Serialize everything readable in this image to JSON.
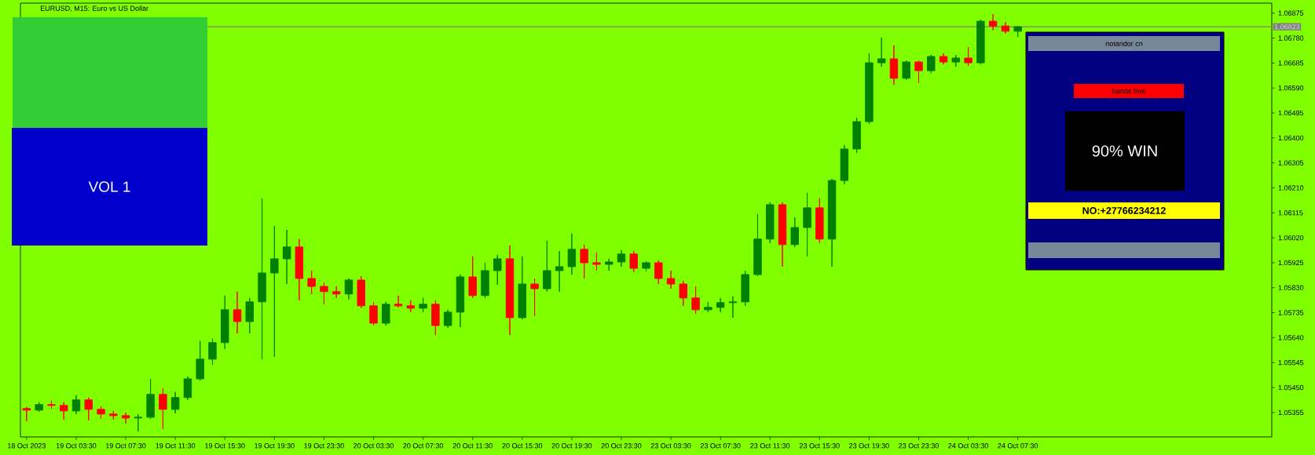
{
  "chart_data": {
    "type": "candlestick",
    "title": "EURUSD, M15: Euro vs US Dollar",
    "categories": [
      "18 Oct 2023",
      null,
      null,
      null,
      "19 Oct 03:30",
      null,
      null,
      null,
      "19 Oct 07:30",
      null,
      null,
      null,
      "19 Oct 11:30",
      null,
      null,
      null,
      "19 Oct 15:30",
      null,
      null,
      null,
      "19 Oct 19:30",
      null,
      null,
      null,
      "19 Oct 23:30",
      null,
      null,
      null,
      "20 Oct 03:30",
      null,
      null,
      null,
      "20 Oct 07:30",
      null,
      null,
      null,
      "20 Oct 11:30",
      null,
      null,
      null,
      "20 Oct 15:30",
      null,
      null,
      null,
      "20 Oct 19:30",
      null,
      null,
      null,
      "20 Oct 23:30",
      null,
      null,
      null,
      "23 Oct 03:30",
      null,
      null,
      null,
      "23 Oct 07:30",
      null,
      null,
      null,
      "23 Oct 11:30",
      null,
      null,
      null,
      "23 Oct 15:30",
      null,
      null,
      null,
      "23 Oct 19:30",
      null,
      null,
      null,
      "23 Oct 23:30",
      null,
      null,
      null,
      "24 Oct 03:30",
      null,
      null,
      null,
      "24 Oct 07:30",
      null,
      null,
      null,
      null,
      null,
      null,
      null,
      null,
      null,
      null,
      null,
      null,
      null,
      null,
      null,
      null,
      null,
      null,
      null,
      null
    ],
    "ohlc": [
      [
        1.0537,
        1.05376,
        1.05322,
        1.05364
      ],
      [
        1.05364,
        1.05394,
        1.05358,
        1.05385
      ],
      [
        1.05385,
        1.054,
        1.0537,
        1.05382
      ],
      [
        1.05382,
        1.05394,
        1.05328,
        1.05361
      ],
      [
        1.05361,
        1.05421,
        1.05349,
        1.05403
      ],
      [
        1.05403,
        1.05412,
        1.05325,
        1.05367
      ],
      [
        1.05367,
        1.05379,
        1.05331,
        1.05349
      ],
      [
        1.05349,
        1.05361,
        1.05328,
        1.05343
      ],
      [
        1.05343,
        1.05355,
        1.05313,
        1.05334
      ],
      [
        1.05334,
        1.05349,
        1.05283,
        1.05337
      ],
      [
        1.05337,
        1.05483,
        1.05331,
        1.05424
      ],
      [
        1.05424,
        1.05447,
        1.05292,
        1.05367
      ],
      [
        1.05367,
        1.05433,
        1.05352,
        1.05412
      ],
      [
        1.05412,
        1.05492,
        1.05403,
        1.05483
      ],
      [
        1.05483,
        1.05627,
        1.05477,
        1.05558
      ],
      [
        1.05558,
        1.05636,
        1.05537,
        1.05621
      ],
      [
        1.05621,
        1.058,
        1.05597,
        1.05746
      ],
      [
        1.05746,
        1.05815,
        1.05656,
        1.05701
      ],
      [
        1.05701,
        1.05791,
        1.05656,
        1.05776
      ],
      [
        1.05776,
        1.0617,
        1.05558,
        1.05886
      ],
      [
        1.05886,
        1.06065,
        1.05567,
        1.0594
      ],
      [
        1.0594,
        1.0605,
        1.05844,
        1.05985
      ],
      [
        1.05985,
        1.06015,
        1.05782,
        1.05865
      ],
      [
        1.05865,
        1.05895,
        1.05806,
        1.05835
      ],
      [
        1.05835,
        1.0585,
        1.05767,
        1.05815
      ],
      [
        1.05815,
        1.05835,
        1.05791,
        1.05806
      ],
      [
        1.05806,
        1.05865,
        1.05785,
        1.05859
      ],
      [
        1.05859,
        1.05874,
        1.05752,
        1.05761
      ],
      [
        1.05761,
        1.05776,
        1.05686,
        1.05695
      ],
      [
        1.05695,
        1.05776,
        1.05686,
        1.05767
      ],
      [
        1.05767,
        1.058,
        1.05755,
        1.05761
      ],
      [
        1.05761,
        1.05782,
        1.05737,
        1.05752
      ],
      [
        1.05752,
        1.05791,
        1.05737,
        1.05767
      ],
      [
        1.05767,
        1.05782,
        1.0565,
        1.05686
      ],
      [
        1.05686,
        1.05746,
        1.05677,
        1.05737
      ],
      [
        1.05737,
        1.0588,
        1.0568,
        1.05871
      ],
      [
        1.05871,
        1.05949,
        1.05791,
        1.058
      ],
      [
        1.058,
        1.05925,
        1.05791,
        1.05895
      ],
      [
        1.05895,
        1.05955,
        1.05841,
        1.0594
      ],
      [
        1.0594,
        1.05991,
        1.0565,
        1.05716
      ],
      [
        1.05716,
        1.05949,
        1.0571,
        1.05844
      ],
      [
        1.05844,
        1.05865,
        1.05722,
        1.05826
      ],
      [
        1.05826,
        1.06009,
        1.05815,
        1.05895
      ],
      [
        1.05895,
        1.0597,
        1.05815,
        1.0591
      ],
      [
        1.0591,
        1.06036,
        1.0588,
        1.05976
      ],
      [
        1.05976,
        1.05994,
        1.05865,
        1.05925
      ],
      [
        1.05925,
        1.05964,
        1.05895,
        1.05919
      ],
      [
        1.05919,
        1.0594,
        1.05895,
        1.05928
      ],
      [
        1.05928,
        1.05973,
        1.0591,
        1.05958
      ],
      [
        1.05958,
        1.0597,
        1.05889,
        1.05904
      ],
      [
        1.05904,
        1.05931,
        1.05892,
        1.05925
      ],
      [
        1.05925,
        1.05934,
        1.05844,
        1.05865
      ],
      [
        1.05865,
        1.05895,
        1.05826,
        1.05844
      ],
      [
        1.05844,
        1.05856,
        1.05761,
        1.05791
      ],
      [
        1.05791,
        1.05835,
        1.05731,
        1.05746
      ],
      [
        1.05746,
        1.05776,
        1.05737,
        1.05755
      ],
      [
        1.05755,
        1.05791,
        1.05737,
        1.05773
      ],
      [
        1.05773,
        1.05797,
        1.05716,
        1.05776
      ],
      [
        1.05776,
        1.05895,
        1.05761,
        1.0588
      ],
      [
        1.0588,
        1.0611,
        1.05874,
        1.06015
      ],
      [
        1.06015,
        1.06155,
        1.06,
        1.06146
      ],
      [
        1.06146,
        1.06155,
        1.0591,
        1.05994
      ],
      [
        1.05994,
        1.06098,
        1.05985,
        1.06059
      ],
      [
        1.06059,
        1.06191,
        1.05949,
        1.06134
      ],
      [
        1.06134,
        1.0617,
        1.06,
        1.06015
      ],
      [
        1.06015,
        1.06244,
        1.0591,
        1.06238
      ],
      [
        1.06238,
        1.06373,
        1.06224,
        1.06358
      ],
      [
        1.06358,
        1.06477,
        1.06343,
        1.06462
      ],
      [
        1.06462,
        1.06722,
        1.06453,
        1.06686
      ],
      [
        1.06686,
        1.06782,
        1.06671,
        1.06701
      ],
      [
        1.06701,
        1.06752,
        1.06603,
        1.06627
      ],
      [
        1.06627,
        1.06695,
        1.06621,
        1.06689
      ],
      [
        1.06689,
        1.06695,
        1.06609,
        1.06656
      ],
      [
        1.06656,
        1.06716,
        1.06647,
        1.0671
      ],
      [
        1.0671,
        1.06722,
        1.0668,
        1.06689
      ],
      [
        1.06689,
        1.06716,
        1.06671,
        1.06704
      ],
      [
        1.06704,
        1.06746,
        1.06674,
        1.06686
      ],
      [
        1.06686,
        1.0685,
        1.0668,
        1.06844
      ],
      [
        1.06844,
        1.06871,
        1.06809,
        1.06826
      ],
      [
        1.06826,
        1.06841,
        1.06797,
        1.06806
      ],
      [
        1.06806,
        1.06826,
        1.06785,
        1.06823
      ],
      null,
      null,
      null,
      null,
      null,
      null,
      null,
      null,
      null,
      null,
      null,
      null,
      null,
      null,
      null,
      null,
      null,
      null,
      null,
      null
    ],
    "colors": [
      "#ff0000",
      "#008000",
      "#ff0000",
      "#ff0000",
      "#008000",
      "#ff0000",
      "#ff0000",
      "#ff0000",
      "#ff0000",
      "#008000",
      "#008000",
      "#ff0000",
      "#008000",
      "#008000",
      "#008000",
      "#008000",
      "#008000",
      "#ff0000",
      "#008000",
      "#008000",
      "#008000",
      "#008000",
      "#ff0000",
      "#ff0000",
      "#ff0000",
      "#ff0000",
      "#008000",
      "#ff0000",
      "#ff0000",
      "#008000",
      "#ff0000",
      "#ff0000",
      "#008000",
      "#ff0000",
      "#008000",
      "#008000",
      "#ff0000",
      "#008000",
      "#008000",
      "#ff0000",
      "#008000",
      "#ff0000",
      "#008000",
      "#008000",
      "#008000",
      "#ff0000",
      "#ff0000",
      "#008000",
      "#008000",
      "#ff0000",
      "#008000",
      "#ff0000",
      "#ff0000",
      "#ff0000",
      "#ff0000",
      "#008000",
      "#008000",
      "#008000",
      "#008000",
      "#008000",
      "#008000",
      "#ff0000",
      "#008000",
      "#008000",
      "#ff0000",
      "#008000",
      "#008000",
      "#008000",
      "#008000",
      "#008000",
      "#ff0000",
      "#008000",
      "#ff0000",
      "#008000",
      "#ff0000",
      "#008000",
      "#ff0000",
      "#008000",
      "#ff0000",
      "#ff0000",
      "#008000",
      null,
      null,
      null,
      null,
      null,
      null,
      null,
      null,
      null,
      null,
      null,
      null,
      null,
      null,
      null,
      null,
      null,
      null,
      null,
      null
    ],
    "ylim": [
      1.05262,
      1.06913
    ],
    "yticks": [
      1.05355,
      {
        "value": 1.0545,
        "label": "1.05450"
      },
      1.05545,
      {
        "value": 1.0564,
        "label": "1.05640"
      },
      1.05735,
      {
        "value": 1.0583,
        "label": "1.05830"
      },
      1.05925,
      {
        "value": 1.0602,
        "label": "1.06020"
      },
      1.06115,
      {
        "value": 1.0621,
        "label": "1.06210"
      },
      1.06305,
      {
        "value": 1.064,
        "label": "1.06400"
      },
      1.06495,
      {
        "value": 1.0659,
        "label": "1.06590"
      },
      1.06685,
      {
        "value": 1.0678,
        "label": "1.06780"
      },
      1.06875
    ],
    "ref_lines": [
      {
        "axis": "y",
        "value": 1.06823,
        "label": "1.06823",
        "color": "#808080"
      }
    ],
    "annotations": [
      "VOL 1",
      "notandor cn",
      "hands free",
      "90% WIN",
      "NO:+27766234212"
    ]
  }
}
